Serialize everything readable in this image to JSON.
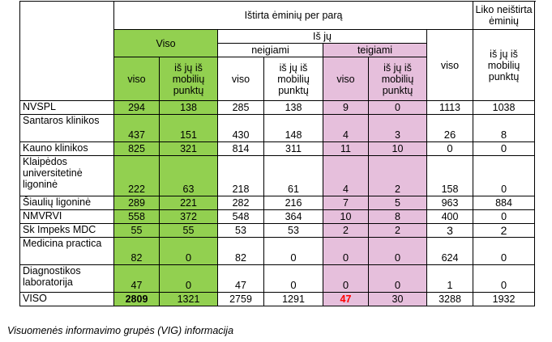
{
  "header": {
    "tested": "Ištirta ėminių per parą",
    "remaining": "Liko neištirta ėminių",
    "total": "Viso",
    "of_them": "Iš jų",
    "negative": "neigiami",
    "positive": "teigiami",
    "sub_all": "viso",
    "sub_mobile": "iš jų iš mobilių punktų"
  },
  "rows": [
    {
      "name": "NVSPL",
      "v": [
        "294",
        "138",
        "285",
        "138",
        "9",
        "0",
        "1113",
        "1038"
      ]
    },
    {
      "name": "Santaros klinikos",
      "v": [
        "437",
        "151",
        "430",
        "148",
        "4",
        "3",
        "26",
        "8"
      ]
    },
    {
      "name": "Kauno klinikos",
      "v": [
        "825",
        "321",
        "814",
        "311",
        "11",
        "10",
        "0",
        "0"
      ]
    },
    {
      "name": "Klaipėdos universitetinė ligoninė",
      "v": [
        "222",
        "63",
        "218",
        "61",
        "4",
        "2",
        "158",
        "0"
      ]
    },
    {
      "name": "Šiaulių ligoninė",
      "v": [
        "289",
        "221",
        "282",
        "216",
        "7",
        "5",
        "963",
        "884"
      ]
    },
    {
      "name": "NMVRVI",
      "v": [
        "558",
        "372",
        "548",
        "364",
        "10",
        "8",
        "400",
        "0"
      ]
    },
    {
      "name": "Sk Impeks MDC",
      "v": [
        "55",
        "55",
        "53",
        "53",
        "2",
        "2",
        "3",
        "2"
      ]
    },
    {
      "name": "Medicina practica",
      "v": [
        "82",
        "0",
        "82",
        "0",
        "0",
        "0",
        "624",
        "0"
      ]
    },
    {
      "name": "Diagnostikos laboratorija",
      "v": [
        "47",
        "0",
        "47",
        "0",
        "0",
        "0",
        "1",
        "0"
      ]
    },
    {
      "name": "VISO",
      "v": [
        "2809",
        "1321",
        "2759",
        "1291",
        "47",
        "30",
        "3288",
        "1932"
      ]
    }
  ],
  "footer": "Visuomenės informavimo grupės (VIG) informacija",
  "colors": {
    "green": "#92d050",
    "pink": "#e6bfdc",
    "highlight": "#ff0000"
  }
}
